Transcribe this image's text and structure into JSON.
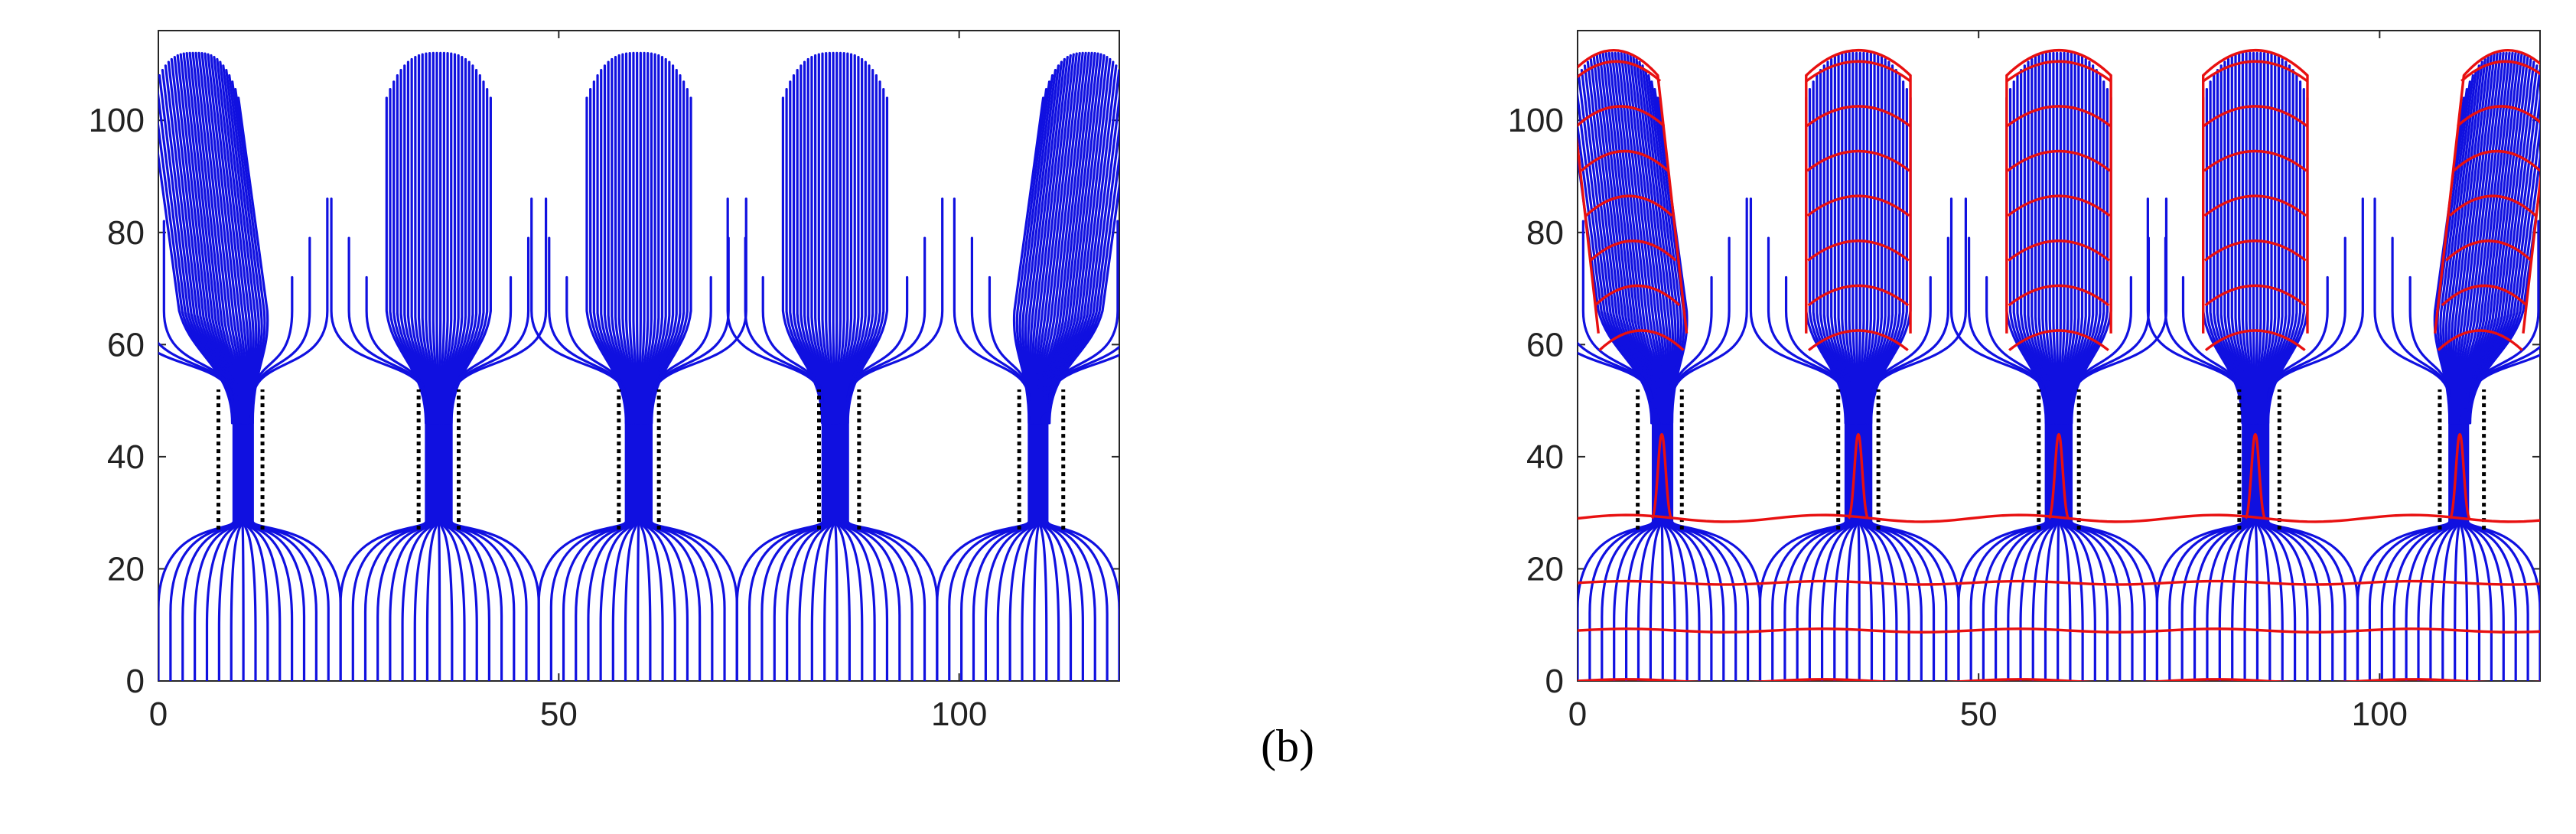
{
  "caption": "(b)",
  "colors": {
    "streamline": "#1010e0",
    "contour": "#e81010",
    "slit": "#000000"
  },
  "icons": {
    "slit-marker": "dotted-vertical-line"
  },
  "chart_data": [
    {
      "type": "line",
      "title": "",
      "xlabel": "",
      "ylabel": "",
      "xlim": [
        0,
        120
      ],
      "ylim": [
        0,
        116
      ],
      "x_ticks": [
        0,
        50,
        100
      ],
      "x_tick_labels": [
        "0",
        "50",
        "100"
      ],
      "y_ticks": [
        0,
        20,
        40,
        60,
        80,
        100
      ],
      "y_tick_labels": [
        "0",
        "20",
        "40",
        "60",
        "80",
        "100"
      ],
      "grid": false,
      "legend": "none",
      "apertures": [
        {
          "center": 10.5,
          "half_width": 1.6,
          "top": 52,
          "bottom": 27,
          "tilt": -1
        },
        {
          "center": 35,
          "half_width": 2.0,
          "top": 52,
          "bottom": 27,
          "tilt": 0
        },
        {
          "center": 60,
          "half_width": 2.0,
          "top": 52,
          "bottom": 27,
          "tilt": 0
        },
        {
          "center": 84.5,
          "half_width": 2.0,
          "top": 52,
          "bottom": 27,
          "tilt": 0
        },
        {
          "center": 110,
          "half_width": 1.6,
          "top": 52,
          "bottom": 27,
          "tilt": 1
        }
      ],
      "slit_walls_x": [
        7.5,
        13.0,
        32.5,
        37.5,
        57.5,
        62.5,
        82.5,
        87.5,
        107.5,
        113.0
      ],
      "slit_y_range": [
        27,
        52
      ],
      "series": [
        {
          "name": "",
          "kind": "streamlines",
          "color": "#1010e0"
        }
      ]
    },
    {
      "type": "line",
      "title": "",
      "xlabel": "",
      "ylabel": "",
      "xlim": [
        0,
        120
      ],
      "ylim": [
        0,
        116
      ],
      "x_ticks": [
        0,
        50,
        100
      ],
      "x_tick_labels": [
        "0",
        "50",
        "100"
      ],
      "y_ticks": [
        0,
        20,
        40,
        60,
        80,
        100
      ],
      "y_tick_labels": [
        "0",
        "20",
        "40",
        "60",
        "80",
        "100"
      ],
      "grid": false,
      "legend": "none",
      "apertures": [
        {
          "center": 10.5,
          "half_width": 1.6,
          "top": 52,
          "bottom": 27,
          "tilt": -1
        },
        {
          "center": 35,
          "half_width": 2.0,
          "top": 52,
          "bottom": 27,
          "tilt": 0
        },
        {
          "center": 60,
          "half_width": 2.0,
          "top": 52,
          "bottom": 27,
          "tilt": 0
        },
        {
          "center": 84.5,
          "half_width": 2.0,
          "top": 52,
          "bottom": 27,
          "tilt": 0
        },
        {
          "center": 110,
          "half_width": 1.6,
          "top": 52,
          "bottom": 27,
          "tilt": 1
        }
      ],
      "slit_walls_x": [
        7.5,
        13.0,
        32.5,
        37.5,
        57.5,
        62.5,
        82.5,
        87.5,
        107.5,
        113.0
      ],
      "slit_y_range": [
        27,
        52
      ],
      "contour_levels_lower_y": [
        0,
        9,
        17.5,
        29
      ],
      "contour_levels_upper_y": [
        62,
        70,
        78,
        86,
        94,
        102,
        110
      ],
      "series": [
        {
          "name": "",
          "kind": "streamlines",
          "color": "#1010e0"
        },
        {
          "name": "",
          "kind": "contours",
          "color": "#e81010"
        }
      ]
    }
  ]
}
